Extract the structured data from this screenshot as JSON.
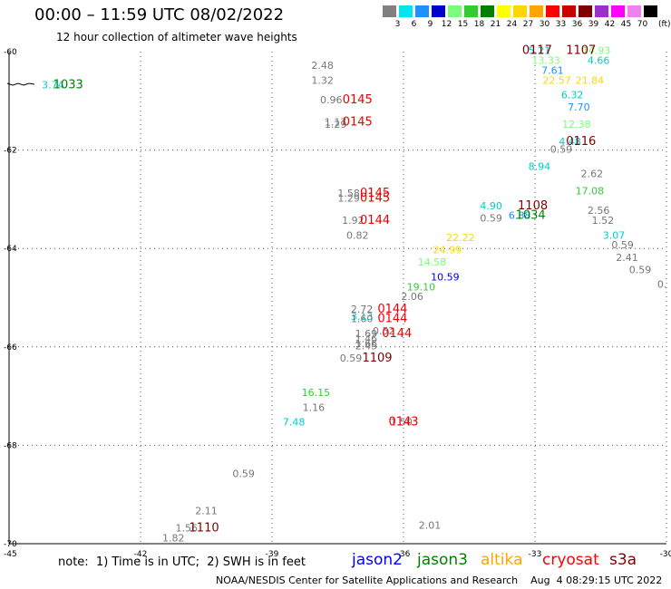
{
  "header": {
    "title": "00:00 – 11:59 UTC 08/02/2022",
    "subtitle": "12 hour collection of altimeter wave heights"
  },
  "legend": {
    "unit": "(ft)",
    "bins": [
      {
        "label": "3",
        "color": "#808080"
      },
      {
        "label": "6",
        "color": "#00e5ee"
      },
      {
        "label": "9",
        "color": "#1e90ff"
      },
      {
        "label": "12",
        "color": "#0000cd"
      },
      {
        "label": "15",
        "color": "#7cfc7c"
      },
      {
        "label": "18",
        "color": "#32cd32"
      },
      {
        "label": "21",
        "color": "#008000"
      },
      {
        "label": "24",
        "color": "#ffff00"
      },
      {
        "label": "27",
        "color": "#ffd700"
      },
      {
        "label": "30",
        "color": "#ffa500"
      },
      {
        "label": "33",
        "color": "#ff0000"
      },
      {
        "label": "36",
        "color": "#cc0000"
      },
      {
        "label": "39",
        "color": "#800000"
      },
      {
        "label": "42",
        "color": "#9932cc"
      },
      {
        "label": "45",
        "color": "#ff00ff"
      },
      {
        "label": "70",
        "color": "#ee82ee"
      },
      {
        "label": "",
        "color": "#000000"
      }
    ]
  },
  "chart_data": {
    "type": "scatter",
    "xlim": [
      -45,
      -30
    ],
    "ylim": [
      -70,
      -60
    ],
    "x_ticks": [
      -45,
      -42,
      -39,
      -36,
      -33,
      -30
    ],
    "y_ticks": [
      -60,
      -62,
      -64,
      -66,
      -68,
      -70
    ],
    "x_tick_labels": [
      "-45",
      "-42",
      "-39",
      "-36",
      "-33",
      "-30"
    ],
    "y_tick_labels": [
      "-60",
      "-62",
      "-64",
      "-66",
      "-68",
      "-70"
    ],
    "grid": true,
    "wave_heights": [
      {
        "x": -44.0,
        "y": -60.75,
        "label": "3.74",
        "color": "#00cccc"
      },
      {
        "x": -37.85,
        "y": -60.35,
        "label": "2.48",
        "color": "#777777"
      },
      {
        "x": -37.85,
        "y": -60.65,
        "label": "1.32",
        "color": "#777777"
      },
      {
        "x": -37.65,
        "y": -61.05,
        "label": "0.96",
        "color": "#777777"
      },
      {
        "x": -37.55,
        "y": -61.5,
        "label": "1.17",
        "color": "#777777"
      },
      {
        "x": -37.55,
        "y": -61.55,
        "label": "1.29",
        "color": "#777777"
      },
      {
        "x": -37.25,
        "y": -62.95,
        "label": "1.58",
        "color": "#777777"
      },
      {
        "x": -37.25,
        "y": -63.05,
        "label": "1.29",
        "color": "#777777"
      },
      {
        "x": -37.15,
        "y": -63.5,
        "label": "1.92",
        "color": "#777777"
      },
      {
        "x": -37.05,
        "y": -63.8,
        "label": "0.82",
        "color": "#777777"
      },
      {
        "x": -32.9,
        "y": -60.05,
        "label": "5.21",
        "color": "#00cccc"
      },
      {
        "x": -32.75,
        "y": -60.25,
        "label": "13.33",
        "color": "#7cfc7c"
      },
      {
        "x": -32.6,
        "y": -60.45,
        "label": "7.61",
        "color": "#1e90ff"
      },
      {
        "x": -32.5,
        "y": -60.65,
        "label": "22.57",
        "color": "#ffd700"
      },
      {
        "x": -31.6,
        "y": -60.05,
        "label": "14.93",
        "color": "#7cfc7c"
      },
      {
        "x": -31.55,
        "y": -60.25,
        "label": "4.66",
        "color": "#00cccc"
      },
      {
        "x": -31.75,
        "y": -60.65,
        "label": "21.84",
        "color": "#ffd700"
      },
      {
        "x": -32.15,
        "y": -60.95,
        "label": "6.32",
        "color": "#00cccc"
      },
      {
        "x": -32.0,
        "y": -61.2,
        "label": "7.70",
        "color": "#1e90ff"
      },
      {
        "x": -32.05,
        "y": -61.55,
        "label": "12.38",
        "color": "#7cfc7c"
      },
      {
        "x": -32.2,
        "y": -61.9,
        "label": "4.48",
        "color": "#00cccc"
      },
      {
        "x": -32.4,
        "y": -62.05,
        "label": "0.59",
        "color": "#777777"
      },
      {
        "x": -32.9,
        "y": -62.4,
        "label": "8.94",
        "color": "#00cccc"
      },
      {
        "x": -31.7,
        "y": -62.55,
        "label": "2.62",
        "color": "#777777"
      },
      {
        "x": -31.75,
        "y": -62.9,
        "label": "17.08",
        "color": "#32cd32"
      },
      {
        "x": -31.55,
        "y": -63.3,
        "label": "2.56",
        "color": "#777777"
      },
      {
        "x": -31.45,
        "y": -63.5,
        "label": "1.52",
        "color": "#777777"
      },
      {
        "x": -31.2,
        "y": -63.8,
        "label": "3.07",
        "color": "#00cccc"
      },
      {
        "x": -31.0,
        "y": -64.0,
        "label": "0.59",
        "color": "#777777"
      },
      {
        "x": -30.9,
        "y": -64.25,
        "label": "2.41",
        "color": "#777777"
      },
      {
        "x": -30.6,
        "y": -64.5,
        "label": "0.59",
        "color": "#777777"
      },
      {
        "x": -30.1,
        "y": -64.8,
        "label": "0.",
        "color": "#777777"
      },
      {
        "x": -34.0,
        "y": -63.2,
        "label": "4.90",
        "color": "#00cccc"
      },
      {
        "x": -34.0,
        "y": -63.45,
        "label": "0.59",
        "color": "#777777"
      },
      {
        "x": -33.35,
        "y": -63.4,
        "label": "6.88",
        "color": "#1e90ff"
      },
      {
        "x": -34.7,
        "y": -63.85,
        "label": "22.22",
        "color": "#ffd700"
      },
      {
        "x": -35.0,
        "y": -64.1,
        "label": "24.99",
        "color": "#ffd700"
      },
      {
        "x": -35.35,
        "y": -64.35,
        "label": "14.58",
        "color": "#7cfc7c"
      },
      {
        "x": -35.05,
        "y": -64.65,
        "label": "10.59",
        "color": "#0000cd"
      },
      {
        "x": -35.6,
        "y": -64.85,
        "label": "19.10",
        "color": "#32cd32"
      },
      {
        "x": -35.8,
        "y": -65.05,
        "label": "2.06",
        "color": "#777777"
      },
      {
        "x": -36.95,
        "y": -65.3,
        "label": "2.72",
        "color": "#777777"
      },
      {
        "x": -36.95,
        "y": -65.45,
        "label": "3.13",
        "color": "#00cccc"
      },
      {
        "x": -36.95,
        "y": -65.5,
        "label": "1.60",
        "color": "#777777"
      },
      {
        "x": -36.45,
        "y": -65.75,
        "label": "0.52",
        "color": "#777777"
      },
      {
        "x": -36.85,
        "y": -65.8,
        "label": "1.69",
        "color": "#777777"
      },
      {
        "x": -36.85,
        "y": -65.9,
        "label": "1.46",
        "color": "#777777"
      },
      {
        "x": -36.85,
        "y": -66.0,
        "label": "1.66",
        "color": "#777777"
      },
      {
        "x": -36.85,
        "y": -66.05,
        "label": "2.45",
        "color": "#777777"
      },
      {
        "x": -37.2,
        "y": -66.3,
        "label": "0.59",
        "color": "#777777"
      },
      {
        "x": -38.0,
        "y": -67.0,
        "label": "16.15",
        "color": "#32cd32"
      },
      {
        "x": -38.05,
        "y": -67.3,
        "label": "1.16",
        "color": "#777777"
      },
      {
        "x": -38.5,
        "y": -67.6,
        "label": "7.48",
        "color": "#00cccc"
      },
      {
        "x": -36.05,
        "y": -67.6,
        "label": "1.50",
        "color": "#777777"
      },
      {
        "x": -39.65,
        "y": -68.65,
        "label": "0.59",
        "color": "#777777"
      },
      {
        "x": -40.5,
        "y": -69.4,
        "label": "2.11",
        "color": "#777777"
      },
      {
        "x": -40.95,
        "y": -69.75,
        "label": "1.56",
        "color": "#777777"
      },
      {
        "x": -41.25,
        "y": -69.95,
        "label": "1.82",
        "color": "#777777"
      },
      {
        "x": -35.4,
        "y": -69.7,
        "label": "2.01",
        "color": "#777777"
      }
    ],
    "pass_times": [
      {
        "x": -43.65,
        "y": -60.75,
        "label": "1033",
        "color": "#008000"
      },
      {
        "x": -37.05,
        "y": -61.05,
        "label": "0145",
        "color": "#ee0000"
      },
      {
        "x": -37.05,
        "y": -61.5,
        "label": "0145",
        "color": "#ee0000"
      },
      {
        "x": -36.65,
        "y": -62.95,
        "label": "0145",
        "color": "#ee0000"
      },
      {
        "x": -36.65,
        "y": -63.05,
        "label": "0145",
        "color": "#ee0000"
      },
      {
        "x": -36.65,
        "y": -63.5,
        "label": "0144",
        "color": "#ee0000"
      },
      {
        "x": -32.95,
        "y": -60.05,
        "label": "0117",
        "color": "#800000"
      },
      {
        "x": -31.95,
        "y": -60.05,
        "label": "1107",
        "color": "#800000"
      },
      {
        "x": -31.95,
        "y": -61.9,
        "label": "0116",
        "color": "#800000"
      },
      {
        "x": -33.05,
        "y": -63.2,
        "label": "1108",
        "color": "#800000"
      },
      {
        "x": -33.1,
        "y": -63.4,
        "label": "1034",
        "color": "#008000"
      },
      {
        "x": -36.25,
        "y": -65.3,
        "label": "0144",
        "color": "#ee0000"
      },
      {
        "x": -36.25,
        "y": -65.5,
        "label": "0144",
        "color": "#ee0000"
      },
      {
        "x": -36.15,
        "y": -65.8,
        "label": "0144",
        "color": "#ee0000"
      },
      {
        "x": -36.6,
        "y": -66.3,
        "label": "1109",
        "color": "#800000"
      },
      {
        "x": -36.0,
        "y": -67.6,
        "label": "0143",
        "color": "#ee0000"
      },
      {
        "x": -40.55,
        "y": -69.75,
        "label": "1110",
        "color": "#800000"
      }
    ]
  },
  "note": "note:  1) Time is in UTC;  2) SWH is in feet",
  "missions": [
    {
      "label": "jason2",
      "color": "#0000ff"
    },
    {
      "label": "jason3",
      "color": "#008000"
    },
    {
      "label": "altika",
      "color": "#ffa500"
    },
    {
      "label": "cryosat",
      "color": "#ff0000"
    },
    {
      "label": "s3a",
      "color": "#800000"
    }
  ],
  "footer": "NOAA/NESDIS Center for Satellite Applications and Research    Aug  4 08:29:15 UTC 2022"
}
